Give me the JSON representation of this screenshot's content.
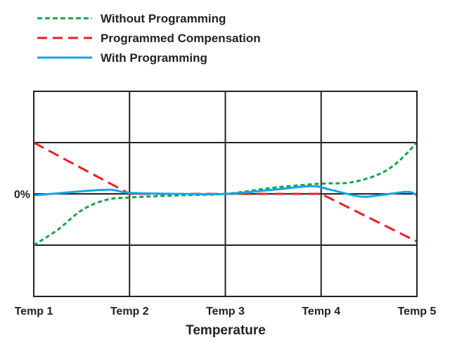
{
  "chart_data": {
    "type": "line",
    "title": "",
    "xlabel": "Temperature",
    "ylabel": "",
    "categories": [
      "Temp 1",
      "Temp 2",
      "Temp 3",
      "Temp 4",
      "Temp 5"
    ],
    "y_tick_labels": [
      {
        "value": 0,
        "label": "0%"
      }
    ],
    "ylim": [
      -2,
      2
    ],
    "grid": true,
    "legend": "top-left",
    "series": [
      {
        "name": "Without Programming",
        "color": "#1aa34a",
        "style": "dotted",
        "points": [
          [
            1,
            -1
          ],
          [
            1.25,
            -0.7
          ],
          [
            1.5,
            -0.32
          ],
          [
            1.75,
            -0.12
          ],
          [
            2,
            -0.07
          ],
          [
            2.5,
            -0.03
          ],
          [
            3,
            0
          ],
          [
            3.5,
            0.12
          ],
          [
            4,
            0.2
          ],
          [
            4.3,
            0.22
          ],
          [
            4.6,
            0.38
          ],
          [
            4.8,
            0.62
          ],
          [
            5,
            1
          ]
        ]
      },
      {
        "name": "Programmed Compensation",
        "color": "#ee1c24",
        "style": "dashed",
        "points": [
          [
            1,
            1
          ],
          [
            2,
            0
          ],
          [
            3,
            0
          ],
          [
            4,
            0
          ],
          [
            5,
            -0.93
          ]
        ]
      },
      {
        "name": "With Programming",
        "color": "#11a7e8",
        "style": "solid",
        "points": [
          [
            1,
            -0.03
          ],
          [
            1.5,
            0.05
          ],
          [
            1.8,
            0.08
          ],
          [
            2,
            0.02
          ],
          [
            2.5,
            0
          ],
          [
            3,
            0
          ],
          [
            3.5,
            0.08
          ],
          [
            3.9,
            0.15
          ],
          [
            4.1,
            0.08
          ],
          [
            4.4,
            -0.05
          ],
          [
            4.6,
            -0.03
          ],
          [
            4.9,
            0.04
          ],
          [
            5,
            -0.03
          ]
        ]
      }
    ]
  }
}
